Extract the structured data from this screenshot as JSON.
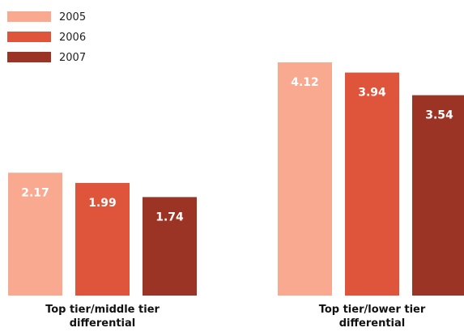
{
  "chart_data": {
    "type": "bar",
    "categories": [
      [
        "Top tier/middle tier",
        "differential"
      ],
      [
        "Top tier/lower tier",
        "differential"
      ]
    ],
    "series": [
      {
        "name": "2005",
        "color": "#f9a98f",
        "values": [
          2.17,
          4.12
        ]
      },
      {
        "name": "2006",
        "color": "#de553b",
        "values": [
          1.99,
          3.94
        ]
      },
      {
        "name": "2007",
        "color": "#9b3424",
        "values": [
          1.74,
          3.54
        ]
      }
    ],
    "ylim": [
      0,
      4.5
    ],
    "grid": false,
    "legend_position": "top-left",
    "value_labels": [
      "2.17",
      "1.99",
      "1.74",
      "4.12",
      "3.94",
      "3.54"
    ]
  }
}
